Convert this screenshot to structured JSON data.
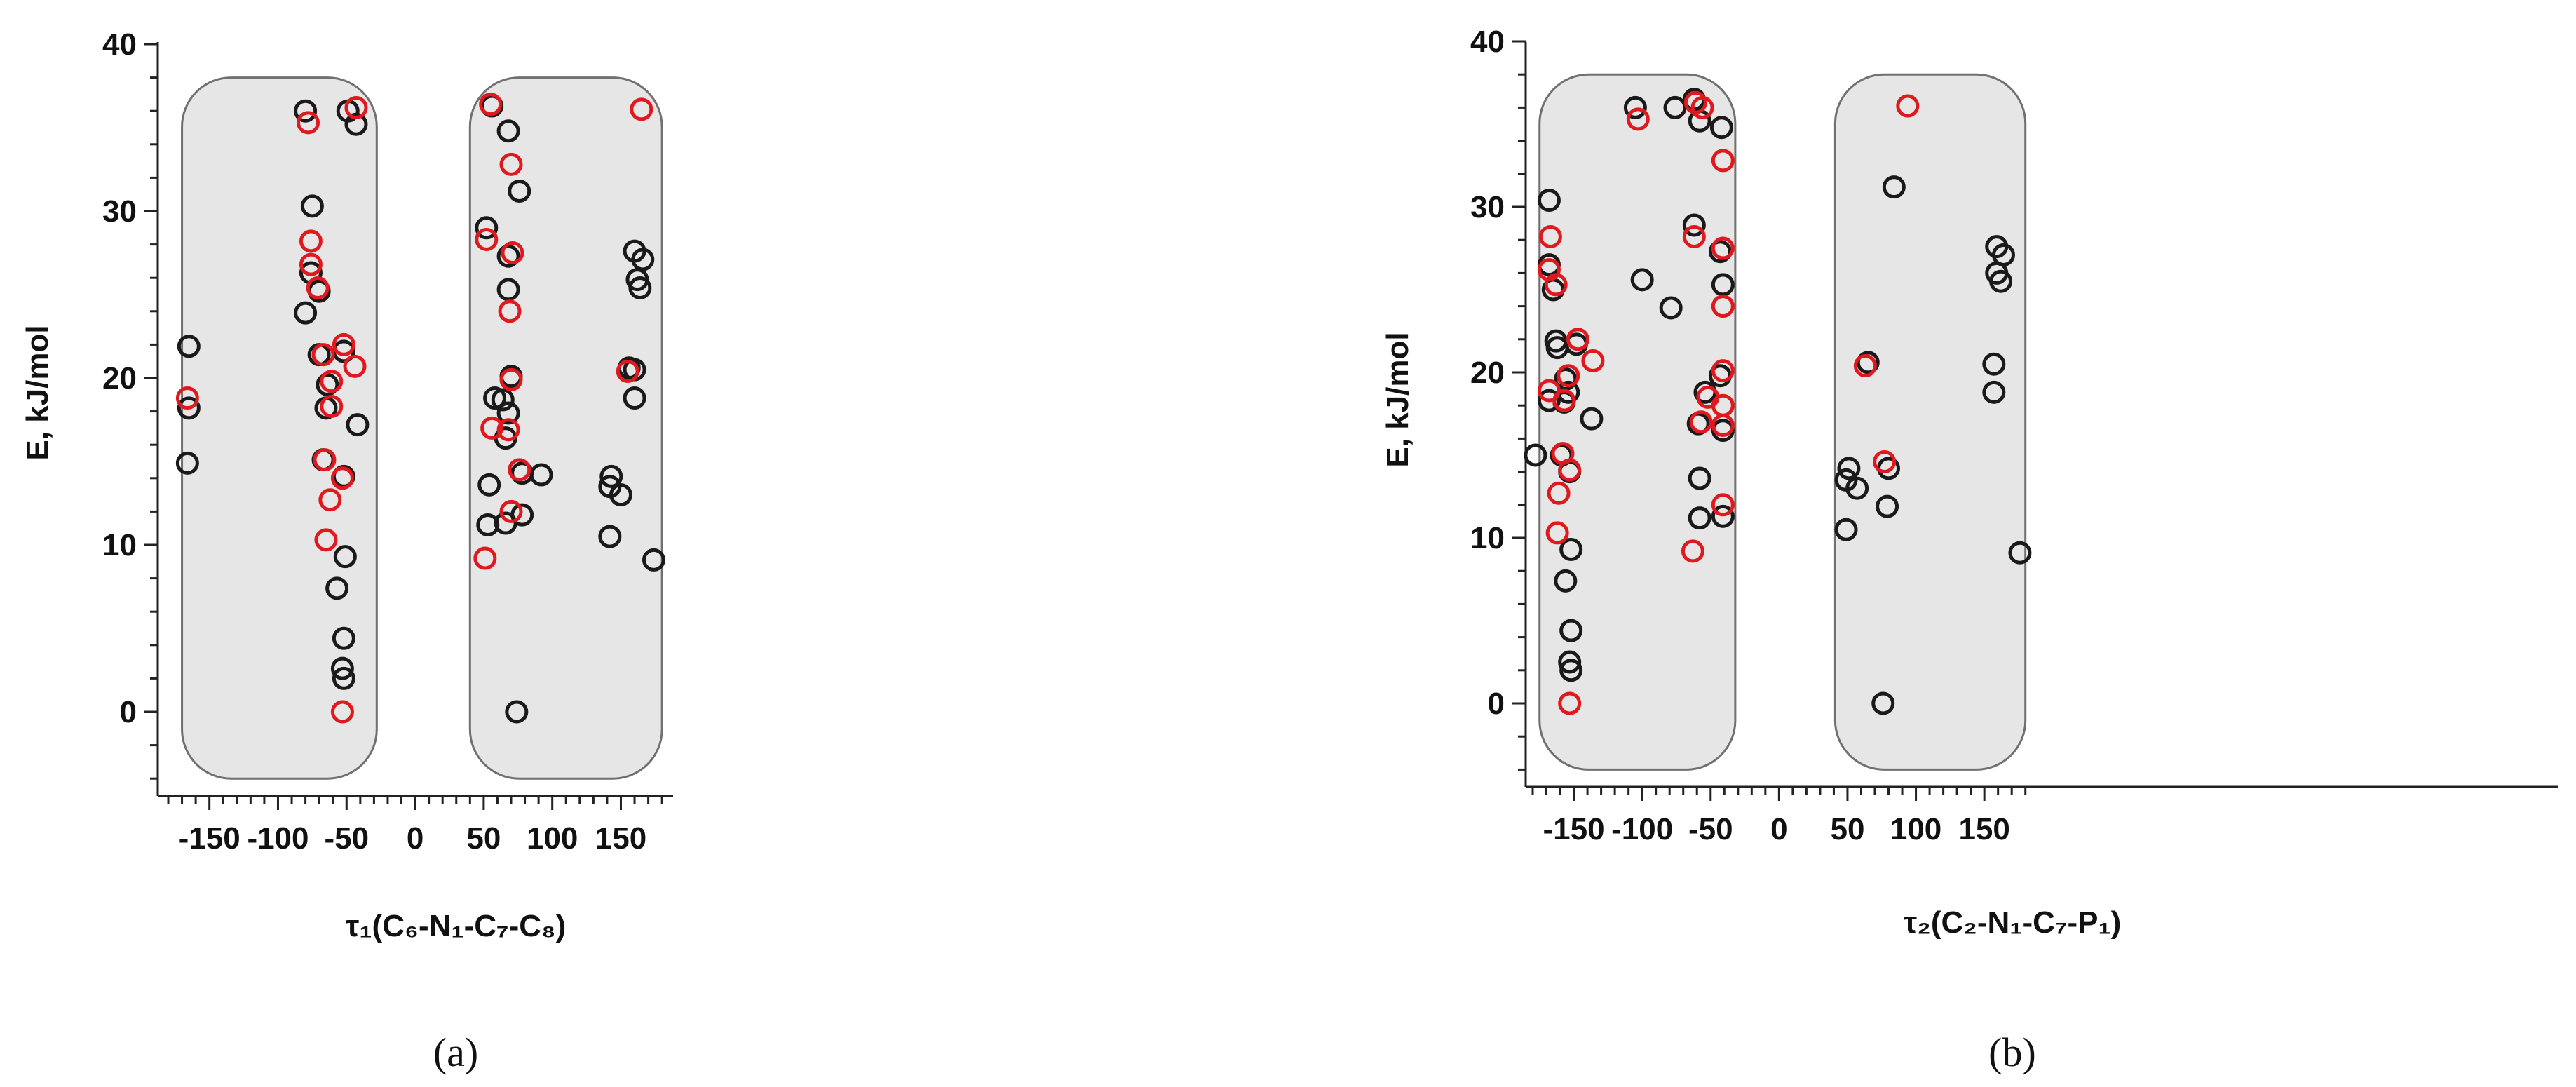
{
  "colors": {
    "black_series": "#1a1a1a",
    "red_series": "#e0191e",
    "region_fill": "#e6e6e6",
    "region_stroke": "#707070"
  },
  "chart_data": [
    {
      "type": "scatter",
      "panel_label": "(a)",
      "xlabel": "τ₁(C₆-N₁-C₇-C₈)",
      "ylabel": "E, kJ/mol",
      "xlim": [
        -180,
        180
      ],
      "ylim": [
        -5,
        40
      ],
      "xticks": [
        -150,
        -100,
        -50,
        0,
        50,
        100,
        150
      ],
      "yticks": [
        0,
        10,
        20,
        30,
        40
      ],
      "grid": false,
      "shaded_regions": [
        {
          "x": [
            -170,
            -28
          ],
          "y": [
            -4,
            38
          ]
        },
        {
          "x": [
            40,
            180
          ],
          "y": [
            -4,
            38
          ]
        }
      ],
      "series": [
        {
          "color": "black",
          "points": [
            [
              -80,
              36
            ],
            [
              -49,
              36
            ],
            [
              -43,
              35.2
            ],
            [
              -75,
              30.3
            ],
            [
              -76,
              26.3
            ],
            [
              -70,
              25.2
            ],
            [
              -80,
              23.9
            ],
            [
              -70,
              21.4
            ],
            [
              -52,
              21.6
            ],
            [
              -64,
              19.6
            ],
            [
              -65,
              18.2
            ],
            [
              -42,
              17.2
            ],
            [
              -67,
              15.1
            ],
            [
              -52,
              14.1
            ],
            [
              -51,
              9.3
            ],
            [
              -57,
              7.4
            ],
            [
              -52,
              4.4
            ],
            [
              -53,
              2.6
            ],
            [
              -52,
              2.0
            ],
            [
              -165,
              21.9
            ],
            [
              -165,
              18.2
            ],
            [
              -166,
              14.9
            ],
            [
              56,
              36.3
            ],
            [
              68,
              34.8
            ],
            [
              76,
              31.2
            ],
            [
              52,
              29.0
            ],
            [
              68,
              27.3
            ],
            [
              68,
              25.3
            ],
            [
              70,
              20.1
            ],
            [
              58,
              18.8
            ],
            [
              64,
              18.7
            ],
            [
              68,
              17.9
            ],
            [
              66,
              16.4
            ],
            [
              54,
              13.6
            ],
            [
              78,
              14.3
            ],
            [
              92,
              14.2
            ],
            [
              53,
              11.2
            ],
            [
              66,
              11.3
            ],
            [
              78,
              11.8
            ],
            [
              74,
              0
            ],
            [
              160,
              27.6
            ],
            [
              166,
              27.1
            ],
            [
              162,
              25.9
            ],
            [
              164,
              25.4
            ],
            [
              156,
              20.6
            ],
            [
              160,
              20.5
            ],
            [
              160,
              18.8
            ],
            [
              143,
              14.1
            ],
            [
              142,
              13.5
            ],
            [
              150,
              13.0
            ],
            [
              142,
              10.5
            ],
            [
              174,
              9.1
            ]
          ]
        },
        {
          "color": "red",
          "points": [
            [
              -78,
              35.3
            ],
            [
              -43,
              36.2
            ],
            [
              -76,
              28.2
            ],
            [
              -76,
              26.8
            ],
            [
              -71,
              25.4
            ],
            [
              -67,
              21.4
            ],
            [
              -52,
              22.0
            ],
            [
              -61,
              19.8
            ],
            [
              -61,
              18.3
            ],
            [
              -44,
              20.7
            ],
            [
              -66,
              15.1
            ],
            [
              -53,
              14.0
            ],
            [
              -62,
              12.7
            ],
            [
              -65,
              10.3
            ],
            [
              -53,
              0
            ],
            [
              -166,
              18.8
            ],
            [
              55,
              36.4
            ],
            [
              70,
              32.8
            ],
            [
              52,
              28.3
            ],
            [
              71,
              27.5
            ],
            [
              69,
              24.0
            ],
            [
              70,
              19.9
            ],
            [
              56,
              17.0
            ],
            [
              68,
              16.9
            ],
            [
              76,
              14.5
            ],
            [
              70,
              12.0
            ],
            [
              51,
              9.2
            ],
            [
              165,
              36.1
            ],
            [
              155,
              20.4
            ]
          ]
        }
      ]
    },
    {
      "type": "scatter",
      "panel_label": "(b)",
      "xlabel": "τ₂(C₂-N₁-C₇-P₁)",
      "ylabel": "E, kJ/mol",
      "xlim": [
        -180,
        180
      ],
      "ylim": [
        -5,
        40
      ],
      "xticks": [
        -150,
        -100,
        -50,
        0,
        50,
        100,
        150
      ],
      "yticks": [
        0,
        10,
        20,
        30,
        40
      ],
      "grid": false,
      "shaded_regions": [
        {
          "x": [
            -175,
            -32
          ],
          "y": [
            -4,
            38
          ]
        },
        {
          "x": [
            41,
            180
          ],
          "y": [
            -4,
            38
          ]
        }
      ],
      "series": [
        {
          "color": "black",
          "points": [
            [
              -105,
              36
            ],
            [
              -76,
              36
            ],
            [
              -62,
              36.5
            ],
            [
              -58,
              35.2
            ],
            [
              -42,
              34.8
            ],
            [
              -168,
              30.4
            ],
            [
              -168,
              26.5
            ],
            [
              -165,
              25.0
            ],
            [
              -163,
              21.9
            ],
            [
              -162,
              21.5
            ],
            [
              -148,
              21.7
            ],
            [
              -156,
              19.6
            ],
            [
              -154,
              18.8
            ],
            [
              -168,
              18.3
            ],
            [
              -157,
              18.2
            ],
            [
              -137,
              17.2
            ],
            [
              -159,
              15.0
            ],
            [
              -153,
              14.0
            ],
            [
              -152,
              9.3
            ],
            [
              -156,
              7.4
            ],
            [
              -152,
              4.4
            ],
            [
              -153,
              2.5
            ],
            [
              -152,
              2.0
            ],
            [
              -178,
              15.0
            ],
            [
              -100,
              25.6
            ],
            [
              -79,
              23.9
            ],
            [
              -62,
              28.9
            ],
            [
              -43,
              27.3
            ],
            [
              -41,
              25.3
            ],
            [
              -54,
              18.8
            ],
            [
              -59,
              16.9
            ],
            [
              -43,
              19.8
            ],
            [
              -41,
              16.5
            ],
            [
              -58,
              13.6
            ],
            [
              -58,
              11.2
            ],
            [
              -41,
              11.3
            ],
            [
              51,
              14.2
            ],
            [
              49,
              13.5
            ],
            [
              57,
              13.0
            ],
            [
              49,
              10.5
            ],
            [
              65,
              20.6
            ],
            [
              80,
              14.2
            ],
            [
              79,
              11.9
            ],
            [
              84,
              31.2
            ],
            [
              76,
              0
            ],
            [
              159,
              27.6
            ],
            [
              164,
              27.1
            ],
            [
              159,
              26.0
            ],
            [
              162,
              25.5
            ],
            [
              157,
              20.5
            ],
            [
              157,
              18.8
            ],
            [
              176,
              9.1
            ]
          ]
        },
        {
          "color": "red",
          "points": [
            [
              -103,
              35.3
            ],
            [
              -61,
              36.3
            ],
            [
              -56,
              36.0
            ],
            [
              -41,
              32.8
            ],
            [
              -167,
              28.2
            ],
            [
              -168,
              26.2
            ],
            [
              -163,
              25.3
            ],
            [
              -147,
              22.0
            ],
            [
              -136,
              20.7
            ],
            [
              -154,
              19.8
            ],
            [
              -157,
              18.3
            ],
            [
              -168,
              18.9
            ],
            [
              -158,
              15.1
            ],
            [
              -153,
              14.1
            ],
            [
              -161,
              12.7
            ],
            [
              -162,
              10.3
            ],
            [
              -153,
              0
            ],
            [
              -62,
              28.2
            ],
            [
              -41,
              27.5
            ],
            [
              -41,
              24.0
            ],
            [
              -41,
              20.1
            ],
            [
              -52,
              18.5
            ],
            [
              -41,
              18.0
            ],
            [
              -57,
              17.0
            ],
            [
              -41,
              16.8
            ],
            [
              -41,
              12.0
            ],
            [
              -63,
              9.2
            ],
            [
              94,
              36.1
            ],
            [
              63,
              20.4
            ],
            [
              77,
              14.6
            ]
          ]
        }
      ]
    }
  ]
}
